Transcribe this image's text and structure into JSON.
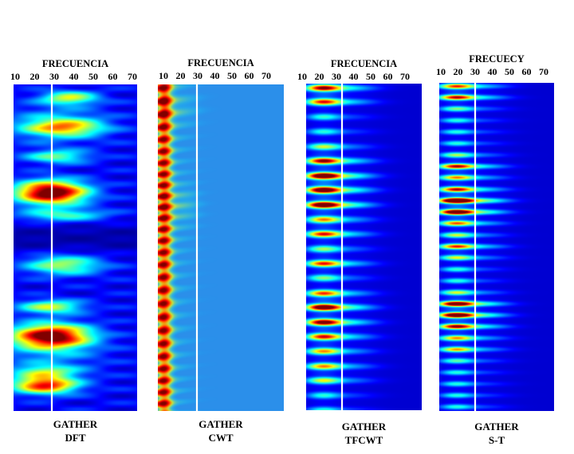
{
  "chart_data": [
    {
      "type": "heatmap",
      "title_top": "FRECUENCIA",
      "x_ticks": [
        "10",
        "20",
        "30",
        "40",
        "50",
        "60",
        "70"
      ],
      "caption_line1": "GATHER",
      "caption_line2": "DFT",
      "marker_frequency": 28,
      "style": "dft",
      "colors": {
        "background": "#00008f",
        "marker": "#ffffff"
      }
    },
    {
      "type": "heatmap",
      "title_top": "FRECUENCIA",
      "x_ticks": [
        "10",
        "20",
        "30",
        "40",
        "50",
        "60",
        "70"
      ],
      "caption_line1": "GATHER",
      "caption_line2": "CWT",
      "marker_frequency": 28,
      "style": "cwt",
      "colors": {
        "background": "#2b8fea",
        "marker": "#ffffff"
      }
    },
    {
      "type": "heatmap",
      "title_top": "FRECUENCIA",
      "x_ticks": [
        "10",
        "20",
        "30",
        "40",
        "50",
        "60",
        "70"
      ],
      "caption_line1": "GATHER",
      "caption_line2": "TFCWT",
      "marker_frequency": 28,
      "style": "tfcwt",
      "colors": {
        "background": "#00005a",
        "marker": "#ffffff"
      }
    },
    {
      "type": "heatmap",
      "title_top": "FRECUECY",
      "x_ticks": [
        "10",
        "20",
        "30",
        "40",
        "50",
        "60",
        "70"
      ],
      "caption_line1": "GATHER",
      "caption_line2": "S-T",
      "marker_frequency": 28,
      "style": "st",
      "colors": {
        "background": "#00005a",
        "marker": "#ffffff"
      }
    }
  ]
}
